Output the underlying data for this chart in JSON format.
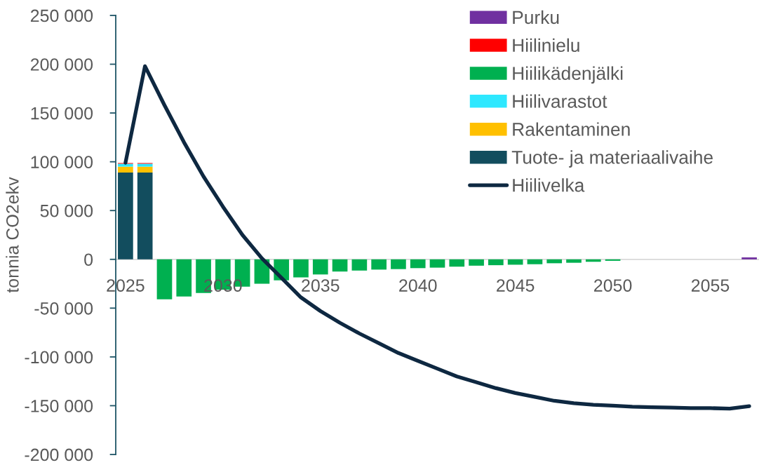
{
  "chart_data": {
    "type": "bar",
    "stacked": true,
    "ylabel": "tonnia CO2ekv",
    "legend": "top right",
    "categories": [
      "2025",
      null,
      null,
      null,
      null,
      "2030",
      null,
      null,
      null,
      null,
      "2035",
      null,
      null,
      null,
      null,
      "2040",
      null,
      null,
      null,
      null,
      "2045",
      null,
      null,
      null,
      null,
      "2050",
      null,
      null,
      null,
      null,
      "2055",
      null,
      null
    ],
    "ylim": [
      -200000,
      250000
    ],
    "yticks": [
      {
        "value": -200000,
        "label": "-200 000"
      },
      {
        "value": -150000,
        "label": "-150 000"
      },
      {
        "value": -100000,
        "label": "-100 000"
      },
      {
        "value": -50000,
        "label": "-50 000"
      },
      0,
      {
        "value": 50000,
        "label": "50 000"
      },
      {
        "value": 100000,
        "label": "100 000"
      },
      {
        "value": 150000,
        "label": "150 000"
      },
      {
        "value": 200000,
        "label": "200 000"
      },
      {
        "value": 250000,
        "label": "250 000"
      }
    ],
    "series": [
      {
        "name": "Tuote- ja materiaalivaihe",
        "color": "#124d5e",
        "values": [
          89000,
          89000,
          null,
          null,
          null,
          null,
          null,
          null,
          null,
          null,
          null,
          null,
          null,
          null,
          null,
          null,
          null,
          null,
          null,
          null,
          null,
          null,
          null,
          null,
          null,
          null,
          null,
          null,
          null,
          null,
          null,
          null,
          null
        ]
      },
      {
        "name": "Rakentaminen",
        "color": "#ffc000",
        "values": [
          6000,
          6000,
          null,
          null,
          null,
          null,
          null,
          null,
          null,
          null,
          null,
          null,
          null,
          null,
          null,
          null,
          null,
          null,
          null,
          null,
          null,
          null,
          null,
          null,
          null,
          null,
          null,
          null,
          null,
          null,
          null,
          null,
          null
        ]
      },
      {
        "name": "Hiilivarastot",
        "color": "#2ee8ff",
        "values": [
          3000,
          3000,
          null,
          null,
          null,
          null,
          null,
          null,
          null,
          null,
          null,
          null,
          null,
          null,
          null,
          null,
          null,
          null,
          null,
          null,
          null,
          null,
          null,
          null,
          null,
          null,
          null,
          null,
          null,
          null,
          null,
          null,
          null
        ]
      },
      {
        "name": "Hiilikädenjälki",
        "color": "#00b050",
        "values": [
          null,
          null,
          -41000,
          -38000,
          -34500,
          -31000,
          -28000,
          -25000,
          -21500,
          -18500,
          -15500,
          -12500,
          -11500,
          -10500,
          -10000,
          -9000,
          -8500,
          -7500,
          -6500,
          -6000,
          -5500,
          -5000,
          -4000,
          -3500,
          -2500,
          -1500,
          null,
          null,
          null,
          null,
          null,
          null,
          null
        ]
      },
      {
        "name": "Hiilinielu",
        "color": "#ff0000",
        "values": [
          700,
          700,
          null,
          null,
          null,
          null,
          null,
          null,
          null,
          null,
          null,
          null,
          null,
          null,
          null,
          null,
          null,
          null,
          null,
          null,
          null,
          null,
          null,
          null,
          null,
          null,
          null,
          null,
          null,
          null,
          null,
          null,
          null
        ]
      },
      {
        "name": "Purku",
        "color": "#7030a0",
        "values": [
          null,
          null,
          null,
          null,
          null,
          null,
          null,
          null,
          null,
          null,
          null,
          null,
          null,
          null,
          null,
          null,
          null,
          null,
          null,
          null,
          null,
          null,
          null,
          null,
          null,
          null,
          null,
          null,
          null,
          null,
          null,
          null,
          2000
        ]
      },
      {
        "name": "Hiilivelka",
        "type": "line",
        "color": "#0e2841",
        "values": [
          99000,
          198000,
          158000,
          120000,
          85000,
          54000,
          25000,
          1000,
          -19000,
          -39000,
          -53000,
          -65000,
          -76000,
          -86000,
          -96000,
          -104000,
          -112000,
          -120000,
          -126000,
          -132000,
          -137000,
          -141000,
          -145000,
          -147500,
          -149000,
          -150000,
          -151000,
          -151500,
          -152000,
          -152500,
          -152500,
          -153000,
          -150500
        ]
      }
    ]
  }
}
